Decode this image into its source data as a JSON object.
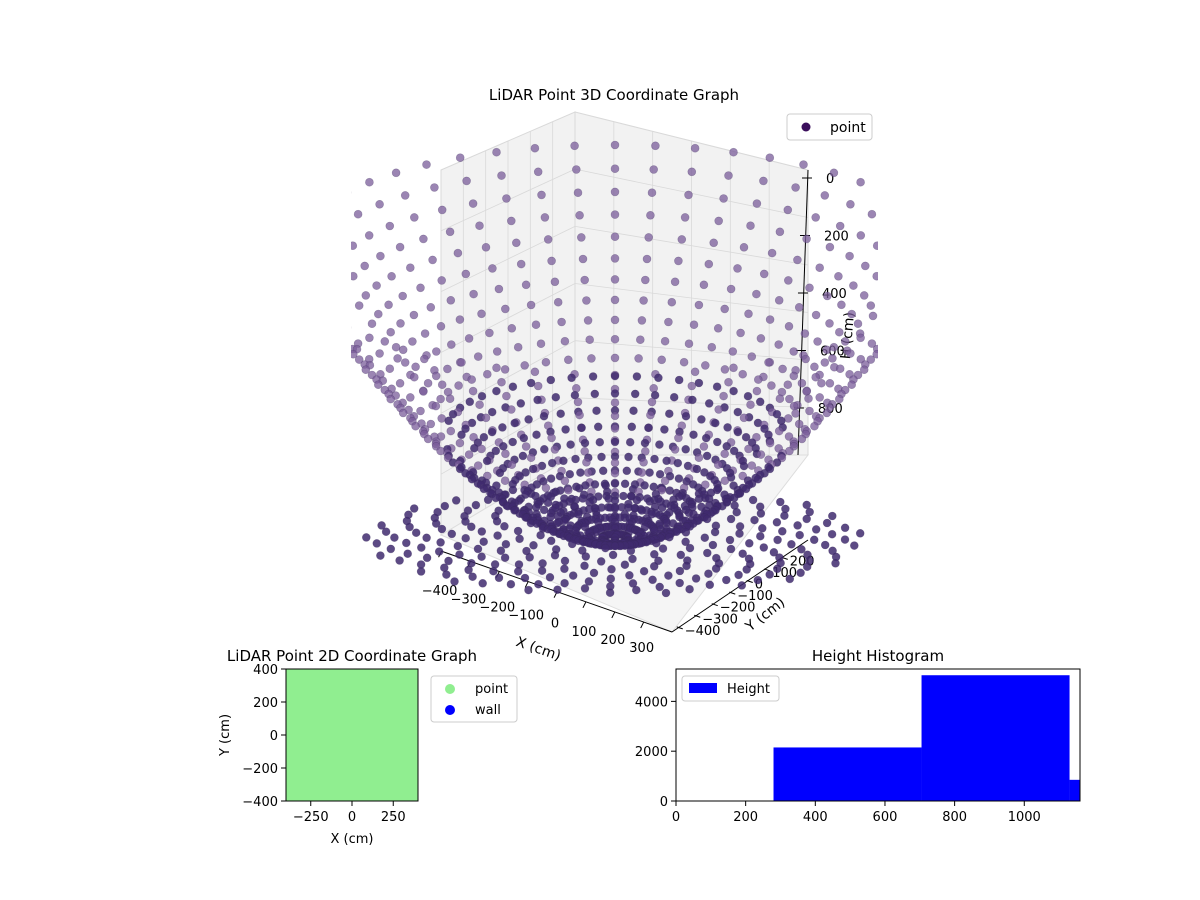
{
  "chart_data": [
    {
      "type": "scatter",
      "projection": "3d",
      "title": "LiDAR Point 3D Coordinate Graph",
      "xlabel": "X (cm)",
      "ylabel": "Y (cm)",
      "zlabel": "H (cm)",
      "xlim": [
        -400,
        400
      ],
      "ylim": [
        -400,
        400
      ],
      "zlim": [
        1000,
        0
      ],
      "x_ticks": [
        "−400",
        "−300",
        "−200",
        "−100",
        "0",
        "100",
        "200",
        "300"
      ],
      "y_ticks": [
        "−400",
        "−300",
        "−200",
        "−100",
        "0",
        "100",
        "200"
      ],
      "z_ticks": [
        "0",
        "200",
        "400",
        "600",
        "800"
      ],
      "grid": true,
      "legend": {
        "position": "top-right",
        "entries": [
          {
            "label": "point",
            "color": "#3b0f5c"
          }
        ]
      },
      "series": [
        {
          "name": "point",
          "color_top": "#7a5c9a",
          "color_bottom": "#3f2a6f",
          "shape": "bowl",
          "radial_lines": 48,
          "points_per_line": 24
        }
      ]
    },
    {
      "type": "scatter",
      "title": "LiDAR Point 2D Coordinate Graph",
      "xlabel": "X (cm)",
      "ylabel": "Y (cm)",
      "xlim": [
        -400,
        400
      ],
      "ylim": [
        -400,
        400
      ],
      "x_ticks": [
        -250,
        0,
        250
      ],
      "y_ticks": [
        -400,
        -200,
        0,
        200,
        400
      ],
      "x_tick_labels": [
        "−250",
        "0",
        "250"
      ],
      "y_tick_labels": [
        "−400",
        "−200",
        "0",
        "200",
        "400"
      ],
      "legend": {
        "position": "right-outside",
        "entries": [
          {
            "label": "point",
            "color": "#90ee90"
          },
          {
            "label": "wall",
            "color": "#0000ff"
          }
        ]
      },
      "fill_color": "#90ee90"
    },
    {
      "type": "bar",
      "histogram": true,
      "title": "Height Histogram",
      "xlim": [
        0,
        1160
      ],
      "ylim": [
        0,
        5300
      ],
      "x_ticks": [
        0,
        200,
        400,
        600,
        800,
        1000
      ],
      "y_ticks": [
        0,
        2000,
        4000
      ],
      "legend": {
        "position": "top-left",
        "entries": [
          {
            "label": "Height",
            "color": "#0000ff"
          }
        ]
      },
      "bins": [
        {
          "start": 280,
          "end": 705,
          "count": 2150
        },
        {
          "start": 705,
          "end": 1130,
          "count": 5050
        },
        {
          "start": 1130,
          "end": 1160,
          "count": 850
        }
      ],
      "color": "#0000ff"
    }
  ]
}
